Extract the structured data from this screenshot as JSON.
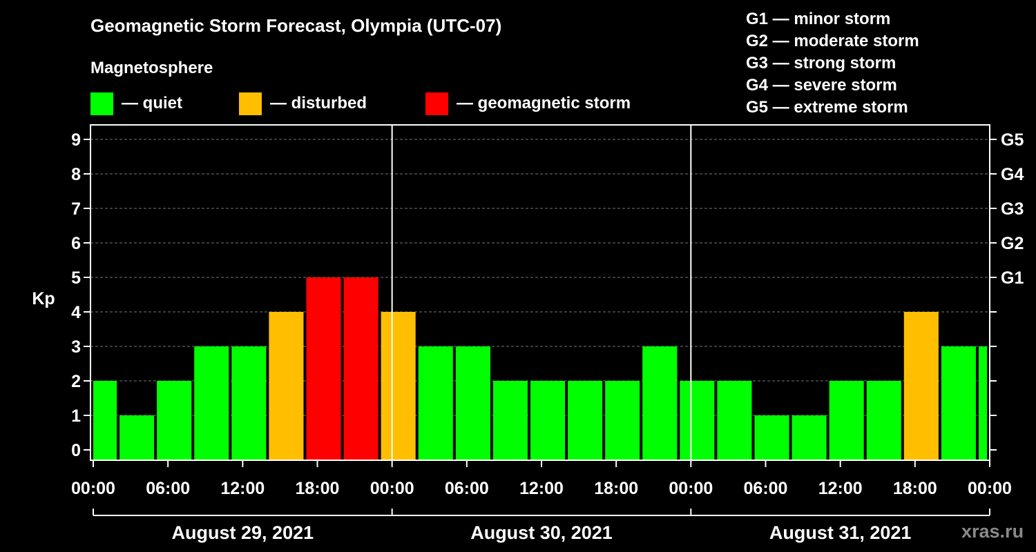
{
  "chart_data": {
    "type": "bar",
    "title": "Geomagnetic Storm Forecast, Olympia (UTC-07)",
    "subtitle": "Magnetosphere",
    "ylabel": "Kp",
    "ylim": [
      0,
      9
    ],
    "yticks": [
      "0",
      "1",
      "2",
      "3",
      "4",
      "5",
      "6",
      "7",
      "8",
      "9"
    ],
    "right_ticks": [
      {
        "kp": 5,
        "label": "G1"
      },
      {
        "kp": 6,
        "label": "G2"
      },
      {
        "kp": 7,
        "label": "G3"
      },
      {
        "kp": 8,
        "label": "G4"
      },
      {
        "kp": 9,
        "label": "G5"
      }
    ],
    "xticks": [
      "00:00",
      "06:00",
      "12:00",
      "18:00",
      "00:00",
      "06:00",
      "12:00",
      "18:00",
      "00:00",
      "06:00",
      "12:00",
      "18:00",
      "00:00"
    ],
    "days": [
      "August 29, 2021",
      "August 30, 2021",
      "August 31, 2021"
    ],
    "x_range_hours": [
      0,
      72
    ],
    "bar_interval_hours": 3,
    "first_bar_start_hour": -1,
    "values": [
      2,
      1,
      2,
      3,
      3,
      4,
      5,
      5,
      4,
      3,
      3,
      2,
      2,
      2,
      2,
      3,
      2,
      2,
      1,
      1,
      2,
      2,
      4,
      3,
      3
    ],
    "colors": {
      "quiet": "#00ff00",
      "disturbed": "#ffbf00",
      "storm": "#ff0000"
    },
    "legend": [
      {
        "label": "— quiet",
        "color": "#00ff00"
      },
      {
        "label": "— disturbed",
        "color": "#ffbf00"
      },
      {
        "label": "— geomagnetic storm",
        "color": "#ff0000"
      }
    ],
    "storm_scale": [
      "G1 — minor storm",
      "G2 — moderate storm",
      "G3 — strong storm",
      "G4 — severe storm",
      "G5 — extreme storm"
    ]
  },
  "watermark": "xras.ru"
}
